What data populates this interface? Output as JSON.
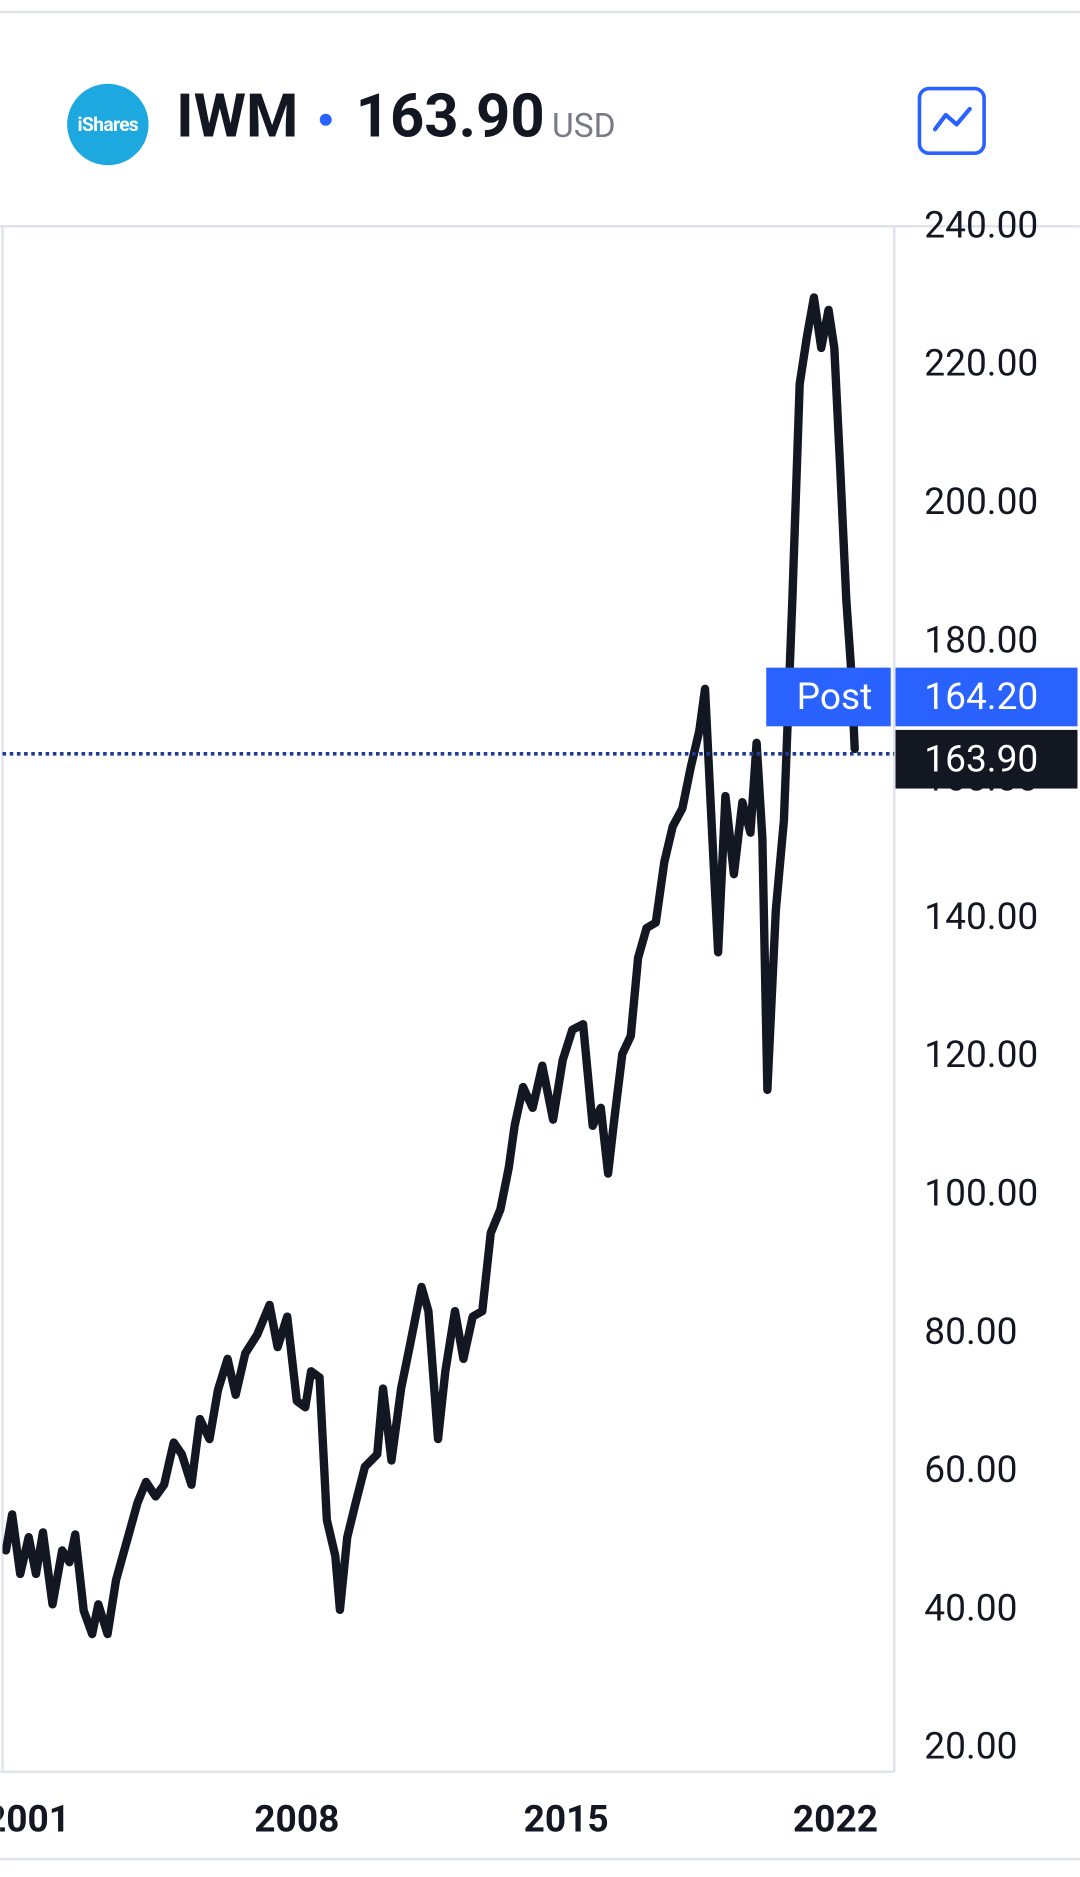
{
  "header": {
    "logo": "iShares",
    "symbol": "IWM",
    "price": "163.90",
    "currency": "USD"
  },
  "chart_data": {
    "type": "line",
    "x": [
      2000.44,
      2000.6,
      2000.81,
      2001.03,
      2001.22,
      2001.4,
      2001.65,
      2001.9,
      2002.09,
      2002.24,
      2002.46,
      2002.68,
      2002.84,
      2003.08,
      2003.3,
      2003.61,
      2003.86,
      2004.08,
      2004.33,
      2004.55,
      2004.8,
      2005.01,
      2005.26,
      2005.48,
      2005.73,
      2005.95,
      2006.2,
      2006.41,
      2006.66,
      2006.97,
      2007.29,
      2007.5,
      2007.75,
      2008.0,
      2008.22,
      2008.37,
      2008.59,
      2008.78,
      2009.0,
      2009.12,
      2009.31,
      2009.53,
      2009.77,
      2010.09,
      2010.24,
      2010.46,
      2010.71,
      2010.93,
      2011.24,
      2011.42,
      2011.67,
      2011.86,
      2012.11,
      2012.33,
      2012.57,
      2012.82,
      2013.04,
      2013.29,
      2013.51,
      2013.66,
      2013.88,
      2014.13,
      2014.38,
      2014.66,
      2014.91,
      2015.16,
      2015.44,
      2015.69,
      2015.9,
      2016.09,
      2016.25,
      2016.46,
      2016.68,
      2016.87,
      2017.09,
      2017.33,
      2017.55,
      2017.77,
      2018.02,
      2018.24,
      2018.46,
      2018.61,
      2018.8,
      2018.95,
      2019.14,
      2019.36,
      2019.58,
      2019.79,
      2019.95,
      2020.1,
      2020.23,
      2020.45,
      2020.66,
      2020.88,
      2021.07,
      2021.26,
      2021.44,
      2021.63,
      2021.82,
      2021.97,
      2022.13,
      2022.28,
      2022.41,
      2022.5
    ],
    "values": [
      48.7,
      53.9,
      45.3,
      50.6,
      45.3,
      51.3,
      40.9,
      48.7,
      47,
      51,
      40,
      36.6,
      40.9,
      36.6,
      44.4,
      50.6,
      55.6,
      58.6,
      56.5,
      58.2,
      64.3,
      62.6,
      58.2,
      67.7,
      64.8,
      71.9,
      76.4,
      71.2,
      77.2,
      79.9,
      84.2,
      78.1,
      82.5,
      70.3,
      69.4,
      74.6,
      73.7,
      53.1,
      47.9,
      40.1,
      50.6,
      55.6,
      60.8,
      62.6,
      72.1,
      61.7,
      72.1,
      78.1,
      86.8,
      83.3,
      64.8,
      74.6,
      83.3,
      76.4,
      82.5,
      83.3,
      94.6,
      98.0,
      104.1,
      110.1,
      115.7,
      112.7,
      118.8,
      111,
      119.6,
      124,
      124.8,
      110.1,
      112.7,
      103.2,
      111,
      120.5,
      123.1,
      134.4,
      138.7,
      139.5,
      148.2,
      153.4,
      156,
      162,
      167.2,
      173.3,
      151.7,
      135.2,
      157.8,
      146.5,
      156.9,
      152.5,
      165.5,
      151.7,
      115.3,
      141.3,
      154.3,
      186.3,
      217.4,
      224.3,
      229.9,
      222.6,
      228.1,
      222.6,
      204.4,
      186.3,
      175.9,
      164.6
    ],
    "line_color": "#131722",
    "xlim": [
      2000.35,
      2023.53
    ],
    "xticks": [
      2001,
      2008,
      2015,
      2022
    ],
    "ylim": [
      16.7,
      240.2
    ],
    "yticks": [
      {
        "value": 20,
        "label": "20.00"
      },
      {
        "value": 40,
        "label": "40.00"
      },
      {
        "value": 60,
        "label": "60.00"
      },
      {
        "value": 80,
        "label": "80.00"
      },
      {
        "value": 100,
        "label": "100.00"
      },
      {
        "value": 120,
        "label": "120.00"
      },
      {
        "value": 140,
        "label": "140.00"
      },
      {
        "value": 160,
        "label": "160.00"
      },
      {
        "value": 180,
        "label": "180.00"
      },
      {
        "value": 200,
        "label": "200.00"
      },
      {
        "value": 220,
        "label": "220.00"
      },
      {
        "value": 240,
        "label": "240.00"
      }
    ],
    "grid": false,
    "last_price": {
      "value": 163.9,
      "label": "163.90",
      "color": "#131722",
      "line_color": "#1f3a93"
    },
    "post_price": {
      "name": "Post",
      "value": 164.2,
      "label": "164.20",
      "color": "#2962ff"
    }
  }
}
